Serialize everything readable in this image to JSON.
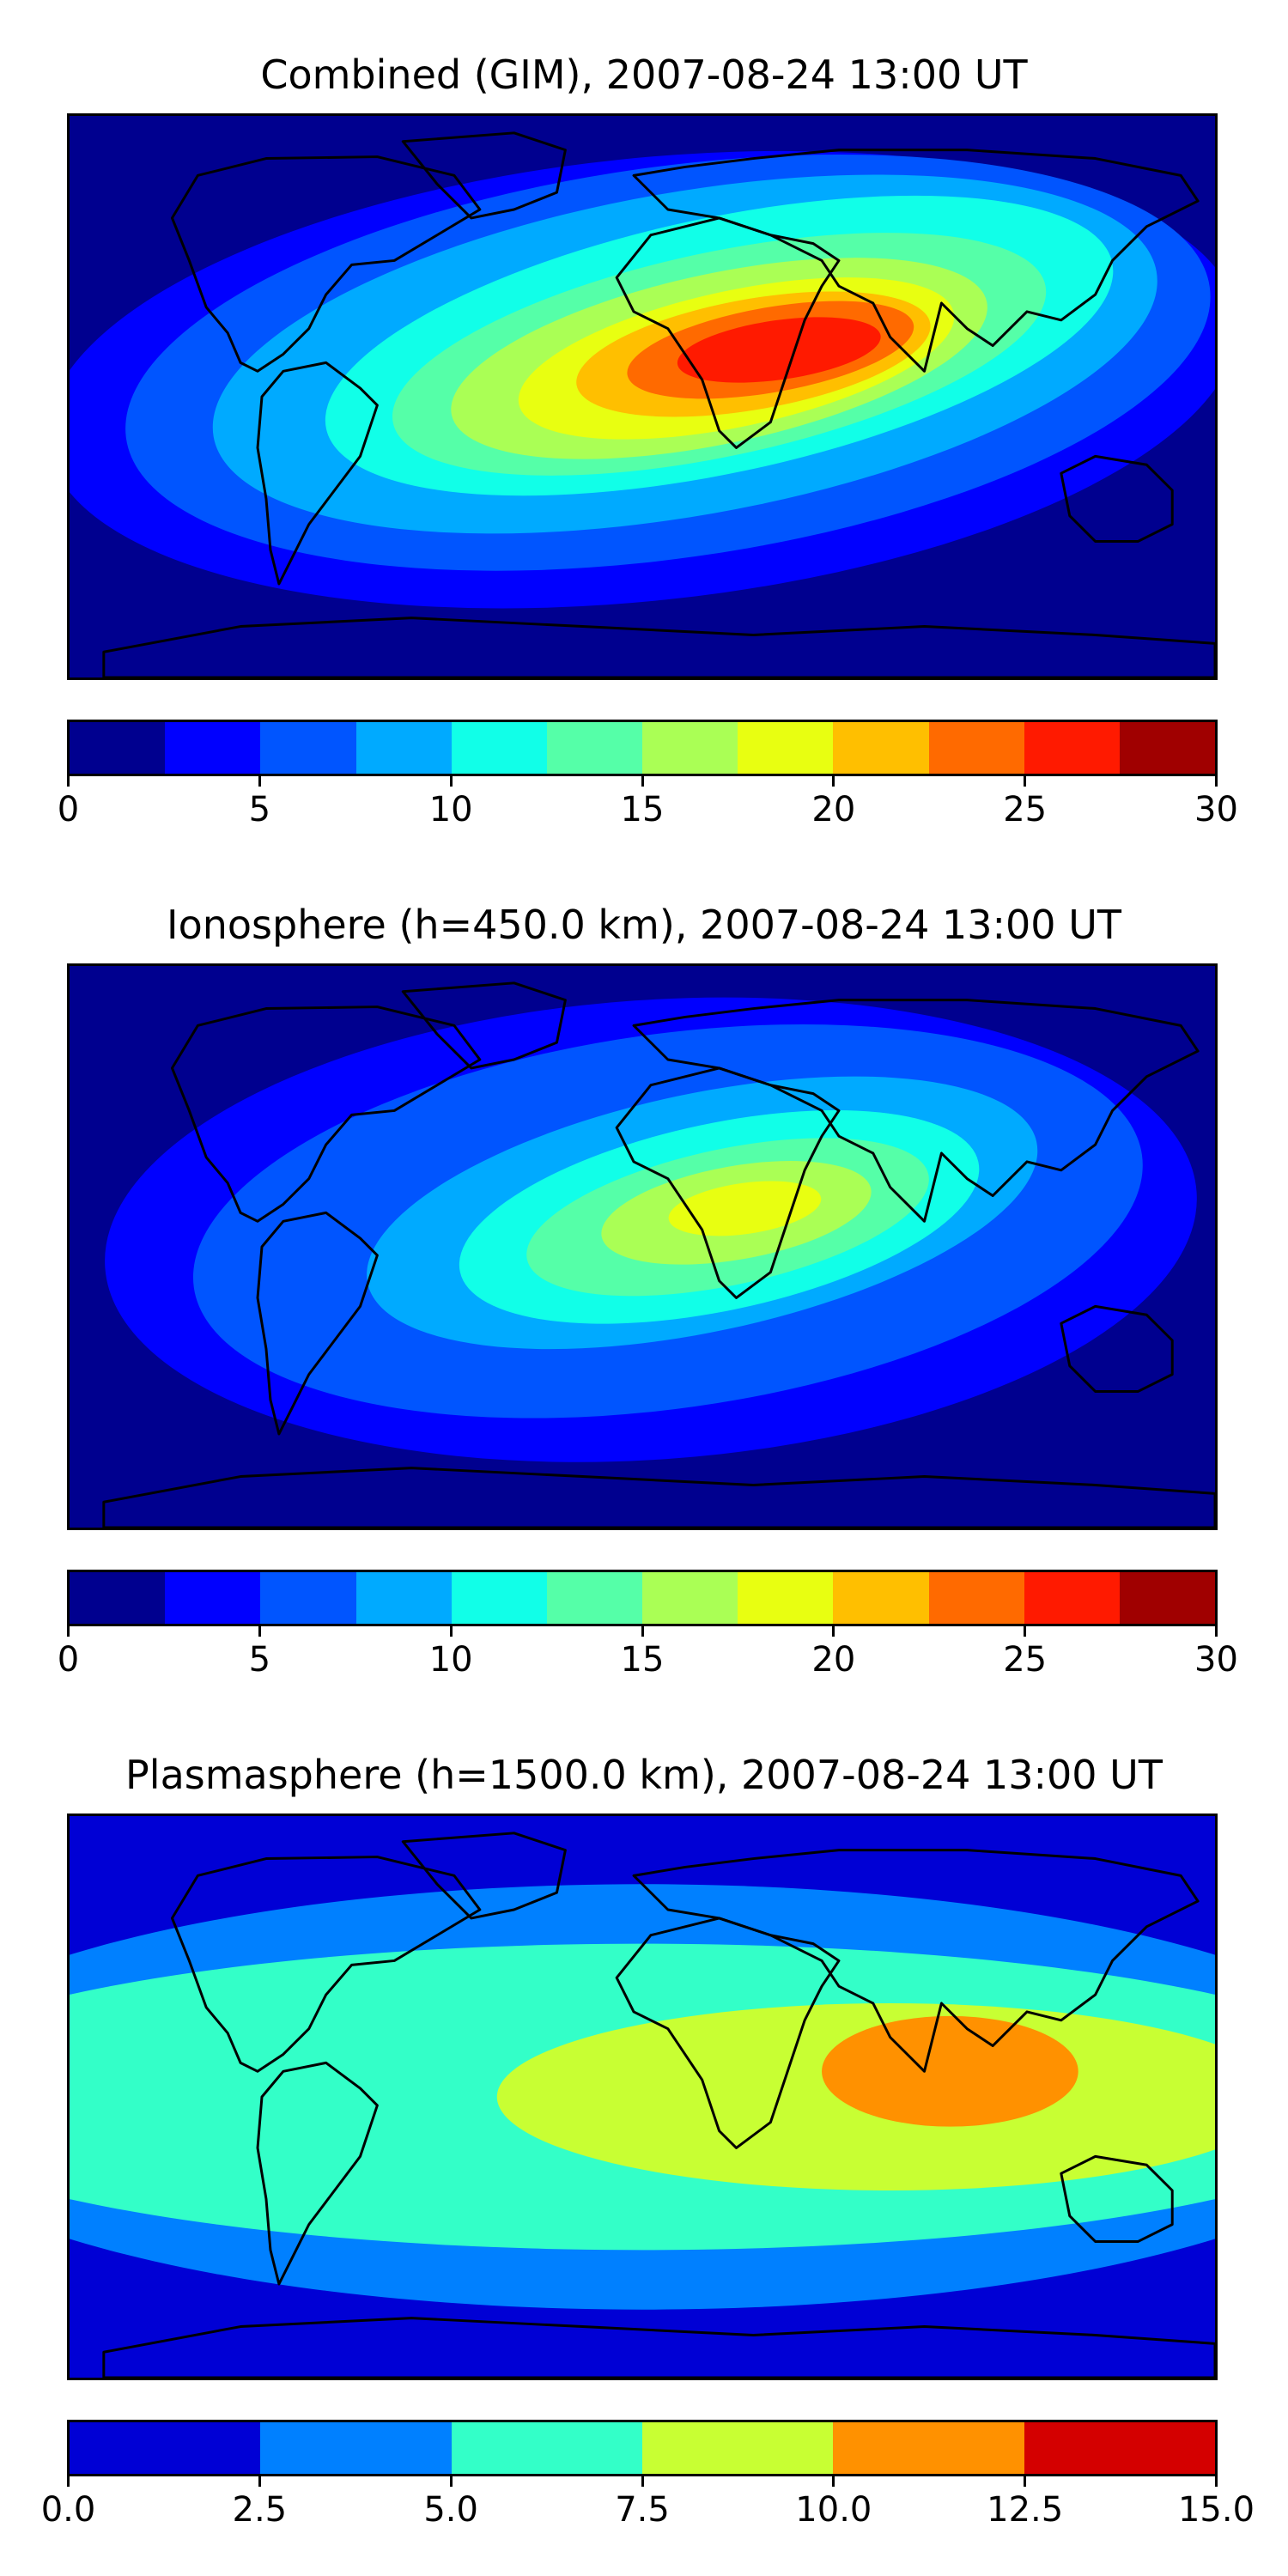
{
  "panels": [
    {
      "title": "Combined (GIM), 2007-08-24 13:00 UT",
      "colorbar": {
        "vmin": 0,
        "vmax": 30,
        "levels": 12,
        "colors": [
          "#00008f",
          "#0000ff",
          "#0055ff",
          "#00aaff",
          "#11ffe8",
          "#55ffa8",
          "#aaff55",
          "#e8ff11",
          "#ffbf00",
          "#ff6a00",
          "#ff1a00",
          "#a00000"
        ],
        "ticks": [
          "0",
          "5",
          "10",
          "15",
          "20",
          "25",
          "30"
        ]
      }
    },
    {
      "title": "Ionosphere  (h=450.0 km), 2007-08-24 13:00 UT",
      "colorbar": {
        "vmin": 0,
        "vmax": 30,
        "levels": 12,
        "colors": [
          "#00008f",
          "#0000ff",
          "#0055ff",
          "#00aaff",
          "#11ffe8",
          "#55ffa8",
          "#aaff55",
          "#e8ff11",
          "#ffbf00",
          "#ff6a00",
          "#ff1a00",
          "#a00000"
        ],
        "ticks": [
          "0",
          "5",
          "10",
          "15",
          "20",
          "25",
          "30"
        ]
      }
    },
    {
      "title": "Plasmasphere (h=1500.0 km), 2007-08-24 13:00 UT",
      "colorbar": {
        "vmin": 0,
        "vmax": 15,
        "levels": 6,
        "colors": [
          "#0000d5",
          "#0080ff",
          "#33ffc8",
          "#c8ff33",
          "#ff9100",
          "#d40000"
        ],
        "ticks": [
          "0.0",
          "2.5",
          "5.0",
          "7.5",
          "10.0",
          "12.5",
          "15.0"
        ]
      }
    }
  ]
}
